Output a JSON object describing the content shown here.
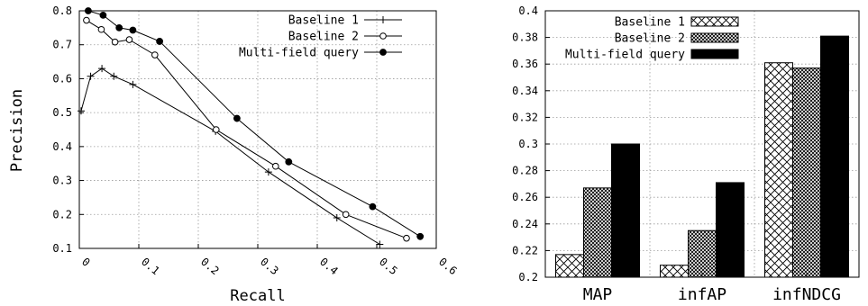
{
  "chart_data": [
    {
      "type": "line",
      "title": "",
      "xlabel": "Recall",
      "ylabel": "Precision",
      "xlim": [
        0,
        0.6
      ],
      "ylim": [
        0.1,
        0.8
      ],
      "xticks": [
        0,
        0.1,
        0.2,
        0.3,
        0.4,
        0.5,
        0.6
      ],
      "xtick_labels": [
        "0",
        "0.1",
        "0.2",
        "0.3",
        "0.4",
        "0.5",
        "0.6"
      ],
      "yticks": [
        0.1,
        0.2,
        0.3,
        0.4,
        0.5,
        0.6,
        0.7,
        0.8
      ],
      "ytick_labels": [
        "0.1",
        "0.2",
        "0.3",
        "0.4",
        "0.5",
        "0.6",
        "0.7",
        "0.8"
      ],
      "grid": true,
      "legend_position": "top-right",
      "series": [
        {
          "name": "Baseline 1",
          "marker": "plus",
          "x": [
            0.003,
            0.019,
            0.038,
            0.058,
            0.09,
            0.229,
            0.318,
            0.433,
            0.505
          ],
          "y": [
            0.505,
            0.607,
            0.63,
            0.607,
            0.583,
            0.445,
            0.325,
            0.19,
            0.112
          ]
        },
        {
          "name": "Baseline 2",
          "marker": "open-circle",
          "x": [
            0.012,
            0.037,
            0.06,
            0.084,
            0.127,
            0.23,
            0.33,
            0.448,
            0.55
          ],
          "y": [
            0.772,
            0.745,
            0.708,
            0.715,
            0.67,
            0.45,
            0.342,
            0.2,
            0.13
          ]
        },
        {
          "name": "Multi-field query",
          "marker": "filled-circle",
          "x": [
            0.015,
            0.04,
            0.067,
            0.09,
            0.135,
            0.265,
            0.352,
            0.493,
            0.573
          ],
          "y": [
            0.8,
            0.787,
            0.75,
            0.743,
            0.71,
            0.483,
            0.355,
            0.223,
            0.135
          ]
        }
      ]
    },
    {
      "type": "bar",
      "title": "",
      "xlabel": "",
      "ylabel": "",
      "ylim": [
        0.2,
        0.4
      ],
      "yticks": [
        0.2,
        0.22,
        0.24,
        0.26,
        0.28,
        0.3,
        0.32,
        0.34,
        0.36,
        0.38,
        0.4
      ],
      "ytick_labels": [
        "0.2",
        "0.22",
        "0.24",
        "0.26",
        "0.28",
        "0.3",
        "0.32",
        "0.34",
        "0.36",
        "0.38",
        "0.4"
      ],
      "grid": true,
      "legend_position": "top-left",
      "categories": [
        "MAP",
        "infAP",
        "infNDCG"
      ],
      "series": [
        {
          "name": "Baseline 1",
          "pattern": "crosshatch-light",
          "values": [
            0.217,
            0.209,
            0.361
          ]
        },
        {
          "name": "Baseline 2",
          "pattern": "crosshatch-dense",
          "values": [
            0.267,
            0.235,
            0.357
          ]
        },
        {
          "name": "Multi-field query",
          "pattern": "solid-black",
          "values": [
            0.3,
            0.271,
            0.381
          ]
        }
      ]
    }
  ]
}
